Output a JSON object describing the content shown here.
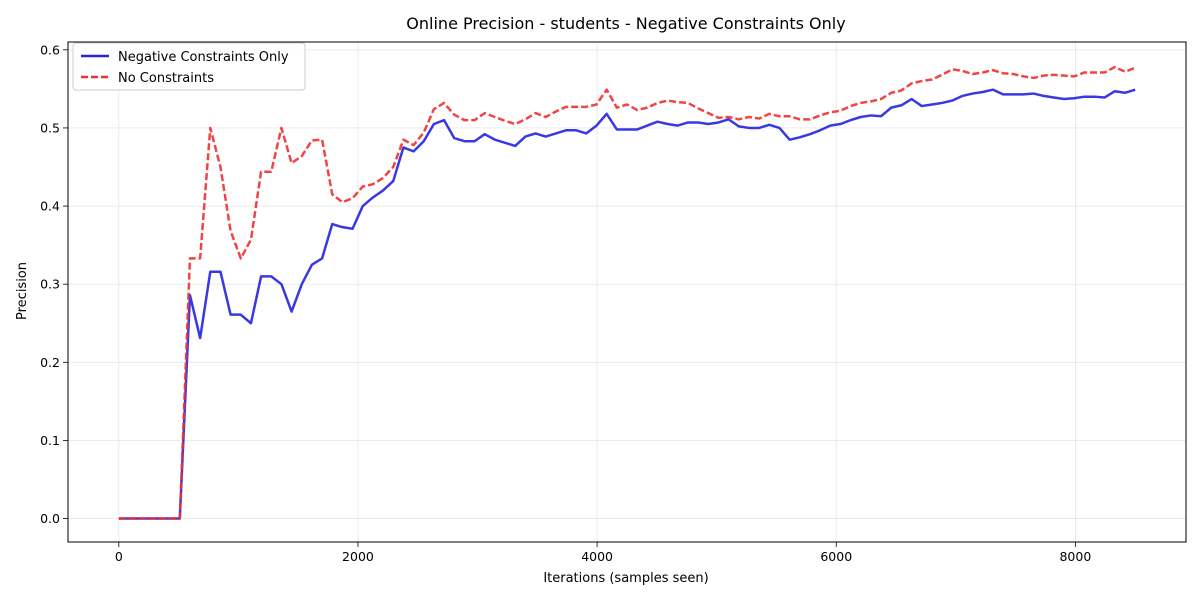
{
  "chart_data": {
    "type": "line",
    "title": "Online Precision - students - Negative Constraints Only",
    "xlabel": "Iterations (samples seen)",
    "ylabel": "Precision",
    "xlim": [
      -425,
      8925
    ],
    "ylim": [
      -0.03,
      0.61
    ],
    "xticks": [
      0,
      2000,
      4000,
      6000,
      8000
    ],
    "yticks": [
      0.0,
      0.1,
      0.2,
      0.3,
      0.4,
      0.5,
      0.6
    ],
    "grid": true,
    "legend_position": "top-left",
    "series": [
      {
        "name": "Negative Constraints Only",
        "color": "#2323e0",
        "style": "solid",
        "x": [
          0,
          85,
          170,
          255,
          340,
          425,
          510,
          595,
          680,
          765,
          850,
          935,
          1020,
          1105,
          1190,
          1275,
          1360,
          1445,
          1530,
          1615,
          1700,
          1785,
          1870,
          1955,
          2040,
          2125,
          2210,
          2295,
          2380,
          2465,
          2550,
          2635,
          2720,
          2805,
          2890,
          2975,
          3060,
          3145,
          3230,
          3315,
          3400,
          3485,
          3570,
          3655,
          3740,
          3825,
          3910,
          3995,
          4080,
          4165,
          4250,
          4335,
          4420,
          4505,
          4590,
          4675,
          4760,
          4845,
          4930,
          5015,
          5100,
          5185,
          5270,
          5355,
          5440,
          5525,
          5610,
          5695,
          5780,
          5865,
          5950,
          6035,
          6120,
          6205,
          6290,
          6375,
          6460,
          6545,
          6630,
          6715,
          6800,
          6885,
          6970,
          7055,
          7140,
          7225,
          7310,
          7395,
          7480,
          7565,
          7650,
          7735,
          7820,
          7905,
          7990,
          8075,
          8160,
          8245,
          8330,
          8415,
          8500
        ],
        "y": [
          0.0,
          0.0,
          0.0,
          0.0,
          0.0,
          0.0,
          0.0,
          0.286,
          0.231,
          0.316,
          0.316,
          0.261,
          0.261,
          0.25,
          0.31,
          0.31,
          0.3,
          0.265,
          0.3,
          0.325,
          0.333,
          0.377,
          0.373,
          0.371,
          0.4,
          0.411,
          0.42,
          0.432,
          0.475,
          0.47,
          0.483,
          0.505,
          0.51,
          0.487,
          0.483,
          0.483,
          0.492,
          0.485,
          0.481,
          0.477,
          0.489,
          0.493,
          0.489,
          0.493,
          0.497,
          0.497,
          0.493,
          0.503,
          0.518,
          0.498,
          0.498,
          0.498,
          0.503,
          0.508,
          0.505,
          0.503,
          0.507,
          0.507,
          0.505,
          0.507,
          0.511,
          0.502,
          0.5,
          0.5,
          0.504,
          0.5,
          0.485,
          0.488,
          0.492,
          0.497,
          0.503,
          0.505,
          0.51,
          0.514,
          0.516,
          0.515,
          0.526,
          0.529,
          0.537,
          0.528,
          0.53,
          0.532,
          0.535,
          0.541,
          0.544,
          0.546,
          0.549,
          0.543,
          0.543,
          0.543,
          0.544,
          0.541,
          0.539,
          0.537,
          0.538,
          0.54,
          0.54,
          0.539,
          0.547,
          0.545,
          0.549
        ]
      },
      {
        "name": "No Constraints",
        "color": "#f03030",
        "style": "dashed",
        "x": [
          0,
          85,
          170,
          255,
          340,
          425,
          510,
          595,
          680,
          765,
          850,
          935,
          1020,
          1105,
          1190,
          1275,
          1360,
          1445,
          1530,
          1615,
          1700,
          1785,
          1870,
          1955,
          2040,
          2125,
          2210,
          2295,
          2380,
          2465,
          2550,
          2635,
          2720,
          2805,
          2890,
          2975,
          3060,
          3145,
          3230,
          3315,
          3400,
          3485,
          3570,
          3655,
          3740,
          3825,
          3910,
          3995,
          4080,
          4165,
          4250,
          4335,
          4420,
          4505,
          4590,
          4675,
          4760,
          4845,
          4930,
          5015,
          5100,
          5185,
          5270,
          5355,
          5440,
          5525,
          5610,
          5695,
          5780,
          5865,
          5950,
          6035,
          6120,
          6205,
          6290,
          6375,
          6460,
          6545,
          6630,
          6715,
          6800,
          6885,
          6970,
          7055,
          7140,
          7225,
          7310,
          7395,
          7480,
          7565,
          7650,
          7735,
          7820,
          7905,
          7990,
          8075,
          8160,
          8245,
          8330,
          8415,
          8500
        ],
        "y": [
          0.0,
          0.0,
          0.0,
          0.0,
          0.0,
          0.0,
          0.0,
          0.333,
          0.333,
          0.5,
          0.45,
          0.368,
          0.333,
          0.357,
          0.444,
          0.444,
          0.5,
          0.455,
          0.464,
          0.484,
          0.485,
          0.415,
          0.405,
          0.41,
          0.425,
          0.428,
          0.436,
          0.45,
          0.485,
          0.478,
          0.494,
          0.524,
          0.532,
          0.517,
          0.51,
          0.51,
          0.519,
          0.514,
          0.509,
          0.505,
          0.511,
          0.519,
          0.514,
          0.521,
          0.527,
          0.527,
          0.527,
          0.53,
          0.549,
          0.526,
          0.53,
          0.523,
          0.526,
          0.532,
          0.535,
          0.533,
          0.532,
          0.525,
          0.519,
          0.513,
          0.514,
          0.511,
          0.514,
          0.512,
          0.518,
          0.515,
          0.515,
          0.511,
          0.511,
          0.516,
          0.52,
          0.522,
          0.528,
          0.532,
          0.534,
          0.537,
          0.545,
          0.548,
          0.557,
          0.56,
          0.562,
          0.568,
          0.575,
          0.573,
          0.569,
          0.571,
          0.574,
          0.57,
          0.569,
          0.566,
          0.564,
          0.567,
          0.568,
          0.567,
          0.566,
          0.571,
          0.571,
          0.571,
          0.578,
          0.572,
          0.577
        ]
      }
    ]
  }
}
